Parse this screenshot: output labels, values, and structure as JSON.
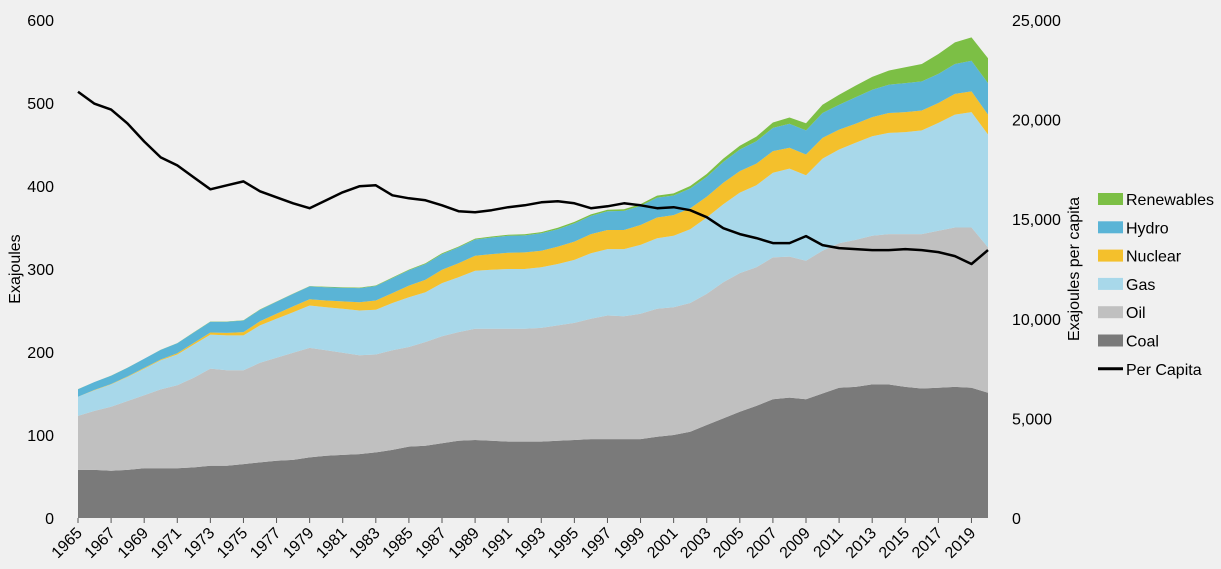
{
  "chart_data": {
    "type": "area",
    "title": "",
    "xlabel": "",
    "ylabel": "Exajoules",
    "y2label": "Exajoules per capita",
    "ylim": [
      0,
      600
    ],
    "y2lim": [
      0,
      25000
    ],
    "yticks": [
      "0",
      "100",
      "200",
      "300",
      "400",
      "500",
      "600"
    ],
    "y2ticks": [
      "0",
      "5,000",
      "10,000",
      "15,000",
      "20,000",
      "25,000"
    ],
    "x": [
      1965,
      1966,
      1967,
      1968,
      1969,
      1970,
      1971,
      1972,
      1973,
      1974,
      1975,
      1976,
      1977,
      1978,
      1979,
      1980,
      1981,
      1982,
      1983,
      1984,
      1985,
      1986,
      1987,
      1988,
      1989,
      1990,
      1991,
      1992,
      1993,
      1994,
      1995,
      1996,
      1997,
      1998,
      1999,
      2000,
      2001,
      2002,
      2003,
      2004,
      2005,
      2006,
      2007,
      2008,
      2009,
      2010,
      2011,
      2012,
      2013,
      2014,
      2015,
      2016,
      2017,
      2018,
      2019,
      2020
    ],
    "xticks": [
      "1965",
      "1967",
      "1969",
      "1971",
      "1973",
      "1975",
      "1977",
      "1979",
      "1981",
      "1983",
      "1985",
      "1987",
      "1989",
      "1991",
      "1993",
      "1995",
      "1997",
      "1999",
      "2001",
      "2003",
      "2005",
      "2007",
      "2009",
      "2011",
      "2013",
      "2015",
      "2017",
      "2019"
    ],
    "legend_position": "right",
    "grid": false,
    "series": [
      {
        "name": "Coal",
        "color": "#7a7a7a",
        "values": [
          58,
          58,
          57,
          58,
          60,
          60,
          60,
          61,
          63,
          63,
          65,
          67,
          69,
          70,
          73,
          75,
          76,
          77,
          79,
          82,
          86,
          87,
          90,
          93,
          94,
          93,
          92,
          92,
          92,
          93,
          94,
          95,
          95,
          95,
          95,
          98,
          100,
          104,
          112,
          120,
          128,
          135,
          143,
          145,
          143,
          150,
          157,
          158,
          161,
          161,
          158,
          156,
          157,
          158,
          157,
          151
        ]
      },
      {
        "name": "Oil",
        "color": "#c0c0c0",
        "values": [
          65,
          71,
          77,
          83,
          88,
          95,
          100,
          108,
          117,
          115,
          113,
          120,
          124,
          129,
          132,
          127,
          123,
          119,
          118,
          120,
          120,
          125,
          129,
          131,
          134,
          135,
          136,
          136,
          137,
          139,
          141,
          145,
          149,
          148,
          151,
          154,
          154,
          155,
          158,
          164,
          167,
          167,
          171,
          170,
          167,
          172,
          174,
          177,
          179,
          181,
          184,
          186,
          189,
          192,
          193,
          175
        ]
      },
      {
        "name": "Gas",
        "color": "#a8d8ea",
        "values": [
          23,
          25,
          27,
          29,
          32,
          35,
          37,
          40,
          41,
          42,
          42,
          45,
          47,
          49,
          51,
          52,
          53,
          54,
          54,
          57,
          60,
          60,
          64,
          66,
          70,
          71,
          72,
          72,
          73,
          74,
          76,
          79,
          80,
          81,
          83,
          85,
          86,
          89,
          92,
          94,
          97,
          99,
          102,
          106,
          103,
          111,
          113,
          117,
          120,
          122,
          123,
          125,
          130,
          136,
          139,
          136
        ]
      },
      {
        "name": "Nuclear",
        "color": "#f4c02c",
        "values": [
          0.2,
          0.3,
          0.5,
          0.6,
          0.8,
          1,
          1.5,
          2,
          2.5,
          3,
          4,
          5,
          6,
          7,
          7.5,
          8,
          9,
          10,
          11,
          12,
          14,
          15,
          16,
          17,
          18,
          19,
          19.5,
          20,
          20,
          21,
          22,
          23,
          23,
          23,
          24,
          25,
          25,
          25,
          25,
          26,
          26,
          26,
          26,
          25,
          25,
          25,
          24,
          23,
          23,
          24,
          24,
          24,
          24,
          25,
          25,
          24
        ]
      },
      {
        "name": "Hydro",
        "color": "#5ab4d6",
        "values": [
          9,
          9.5,
          10,
          10.5,
          11,
          11.5,
          12,
          12.5,
          13,
          13.5,
          14,
          14,
          14.5,
          15,
          15.5,
          16,
          16.5,
          17,
          17.5,
          18,
          18.5,
          19,
          19,
          19,
          19.5,
          20,
          20.5,
          20.5,
          21,
          21,
          22,
          22,
          22.5,
          23,
          23,
          24,
          23.5,
          24,
          24,
          25,
          26,
          27,
          28,
          29,
          29,
          30,
          30,
          32,
          33,
          34,
          35,
          35,
          35,
          36,
          37,
          38
        ]
      },
      {
        "name": "Renewables",
        "color": "#7cbf45",
        "values": [
          0.1,
          0.1,
          0.1,
          0.1,
          0.1,
          0.2,
          0.2,
          0.2,
          0.2,
          0.3,
          0.3,
          0.3,
          0.4,
          0.4,
          0.4,
          0.5,
          0.5,
          0.6,
          0.6,
          0.7,
          0.8,
          0.9,
          1,
          1,
          1.1,
          1.2,
          1.3,
          1.4,
          1.5,
          1.6,
          1.7,
          1.8,
          1.9,
          2,
          2.2,
          2.4,
          2.6,
          3,
          3.5,
          4,
          4.5,
          5.5,
          6.5,
          7.5,
          8.5,
          10,
          12,
          14,
          15.5,
          17,
          19,
          21,
          24,
          26,
          28,
          30
        ]
      }
    ],
    "line_series": {
      "name": "Per Capita",
      "color": "#000000",
      "axis": "right",
      "values": [
        21400,
        20800,
        20500,
        19800,
        18900,
        18100,
        17700,
        17100,
        16500,
        16700,
        16900,
        16400,
        16100,
        15800,
        15550,
        15950,
        16350,
        16650,
        16700,
        16200,
        16050,
        15950,
        15700,
        15400,
        15350,
        15450,
        15600,
        15700,
        15850,
        15900,
        15800,
        15550,
        15650,
        15800,
        15700,
        15550,
        15600,
        15450,
        15100,
        14550,
        14250,
        14050,
        13800,
        13800,
        14150,
        13700,
        13550,
        13500,
        13450,
        13450,
        13500,
        13450,
        13350,
        13150,
        12750,
        13450
      ]
    }
  }
}
